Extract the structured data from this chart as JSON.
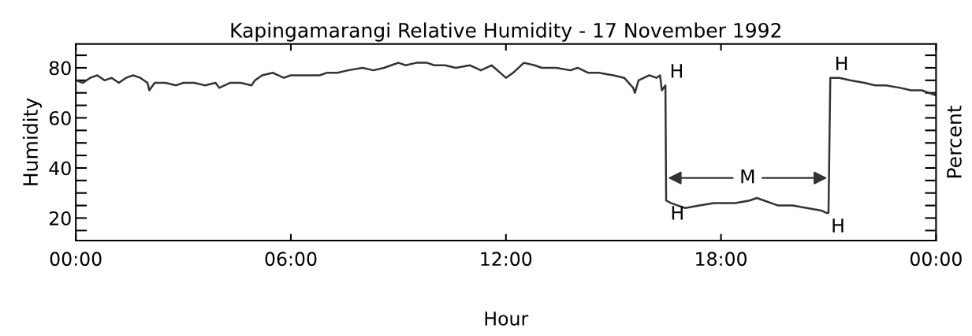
{
  "chart_data": {
    "type": "line",
    "title": "Kapingamarangi Relative Humidity - 17 November 1992",
    "xlabel": "Hour",
    "ylabel": "Humidity",
    "y2label": "Percent",
    "x": [
      0,
      0.2,
      0.4,
      0.6,
      0.8,
      1.0,
      1.2,
      1.4,
      1.6,
      1.8,
      2.0,
      2.05,
      2.2,
      2.5,
      2.8,
      3.0,
      3.3,
      3.6,
      3.9,
      4.0,
      4.3,
      4.6,
      4.9,
      5.0,
      5.2,
      5.5,
      5.8,
      6.0,
      6.2,
      6.5,
      6.8,
      7.0,
      7.3,
      7.6,
      8.0,
      8.3,
      8.6,
      8.8,
      9.0,
      9.2,
      9.5,
      9.8,
      10.0,
      10.3,
      10.6,
      11.0,
      11.3,
      11.6,
      12.0,
      12.2,
      12.5,
      12.8,
      13.0,
      13.4,
      13.8,
      14.0,
      14.3,
      14.6,
      15.0,
      15.3,
      15.55,
      15.6,
      15.7,
      16.0,
      16.2,
      16.3,
      16.35,
      16.45,
      16.47,
      16.6,
      16.8,
      17.0,
      17.4,
      17.8,
      18.0,
      18.4,
      18.8,
      19.0,
      19.2,
      19.6,
      20.0,
      20.4,
      20.8,
      20.95,
      21.0,
      21.05,
      21.3,
      21.6,
      22.0,
      22.3,
      22.6,
      23.0,
      23.3,
      23.6,
      23.8,
      24.0
    ],
    "series": [
      {
        "color": "#333333",
        "values": [
          75,
          74,
          76,
          77,
          75,
          76,
          74,
          76,
          77,
          76,
          74,
          71,
          74,
          74,
          73,
          74,
          74,
          73,
          74,
          72,
          74,
          74,
          73,
          75,
          77,
          78,
          76,
          77,
          77,
          77,
          77,
          78,
          78,
          79,
          80,
          79,
          80,
          81,
          82,
          81,
          82,
          82,
          81,
          81,
          80,
          81,
          79,
          81,
          76,
          78,
          82,
          81,
          80,
          80,
          79,
          80,
          78,
          78,
          77,
          76,
          72,
          70,
          75,
          77,
          76,
          77,
          71,
          73,
          27,
          26,
          25,
          24,
          25,
          26,
          26,
          26,
          27,
          28,
          27,
          25,
          25,
          24,
          23,
          22,
          22,
          76,
          76,
          75,
          74,
          73,
          73,
          72,
          71,
          71,
          70,
          69
        ]
      }
    ],
    "xlim": [
      0,
      24
    ],
    "xticks": [
      {
        "value": 0,
        "label": "00:00"
      },
      {
        "value": 6,
        "label": "06:00"
      },
      {
        "value": 12,
        "label": "12:00"
      },
      {
        "value": 18,
        "label": "18:00"
      },
      {
        "value": 24,
        "label": "00:00"
      }
    ],
    "ylim": [
      11,
      89.5
    ],
    "yticks": [
      {
        "value": 15,
        "label": null
      },
      20,
      {
        "value": 25,
        "label": null
      },
      {
        "value": 30,
        "label": null
      },
      {
        "value": 35,
        "label": null
      },
      40,
      {
        "value": 45,
        "label": null
      },
      {
        "value": 50,
        "label": null
      },
      {
        "value": 55,
        "label": null
      },
      60,
      {
        "value": 65,
        "label": null
      },
      {
        "value": 70,
        "label": null
      },
      {
        "value": 75,
        "label": null
      },
      80,
      {
        "value": 85,
        "label": null
      }
    ],
    "annotations": [
      {
        "text": "H",
        "x": 16.45,
        "y": 73
      },
      {
        "text": "H",
        "x": 16.47,
        "y": 27
      },
      {
        "text": "M",
        "x": 21.0,
        "y": 36
      },
      {
        "text": "H",
        "x": 20.95,
        "y": 22
      },
      {
        "text": "H",
        "x": 21.05,
        "y": 76
      }
    ],
    "grid": false,
    "legend": false,
    "marker": "none",
    "line_style": "solid"
  }
}
